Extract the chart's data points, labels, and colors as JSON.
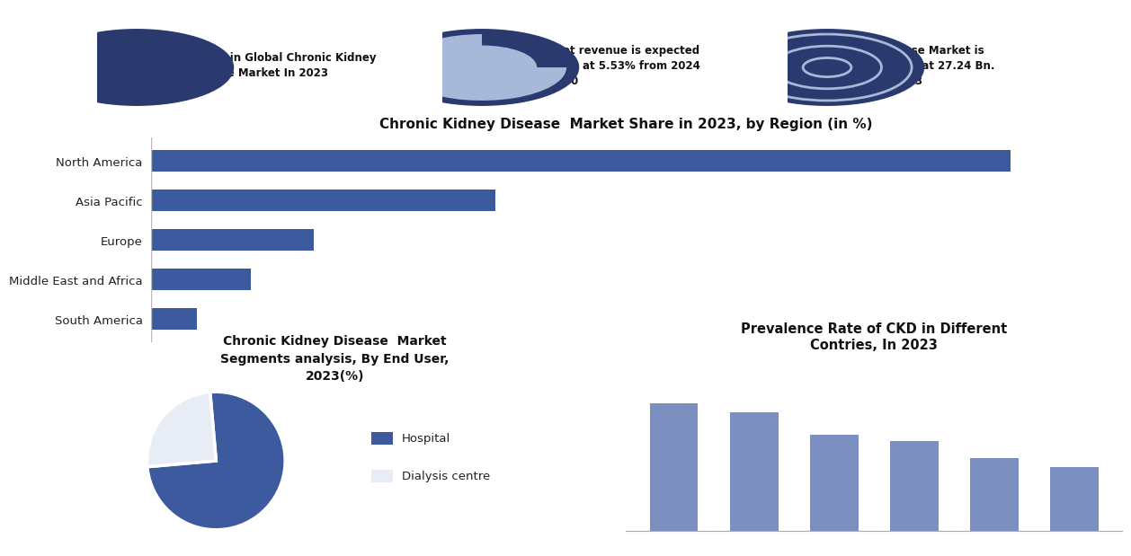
{
  "bg_color": "#ffffff",
  "info_box_color": "#a8b8d8",
  "bar_chart_title": "Chronic Kidney Disease  Market Share in 2023, by Region (in %)",
  "bar_regions": [
    "South America",
    "Middle East and Africa",
    "Europe",
    "Asia Pacific",
    "North America"
  ],
  "bar_values": [
    5,
    11,
    18,
    38,
    95
  ],
  "bar_color": "#3d5a9e",
  "pie_title": "Chronic Kidney Disease  Market\nSegments analysis, By End User,\n2023(%)",
  "pie_legend_labels": [
    "Hospital",
    "Dialysis centre"
  ],
  "pie_values": [
    75,
    25
  ],
  "pie_colors": [
    "#3d5a9e",
    "#e8ecf5"
  ],
  "prevalence_title": "Prevalence Rate of CKD in Different\nContries, In 2023",
  "prevalence_values": [
    14,
    13,
    10.5,
    9.8,
    8,
    7
  ],
  "prevalence_bar_color": "#7b8fc0",
  "info_box_texts": [
    "region in Global Chronic Kidney\nDisease Market In 2023",
    "Market revenue is expected\nto grow at 5.53% from 2024\nto 2030",
    "Disease Market is\nvalued at 27.24 Bn.\nin 2023"
  ]
}
